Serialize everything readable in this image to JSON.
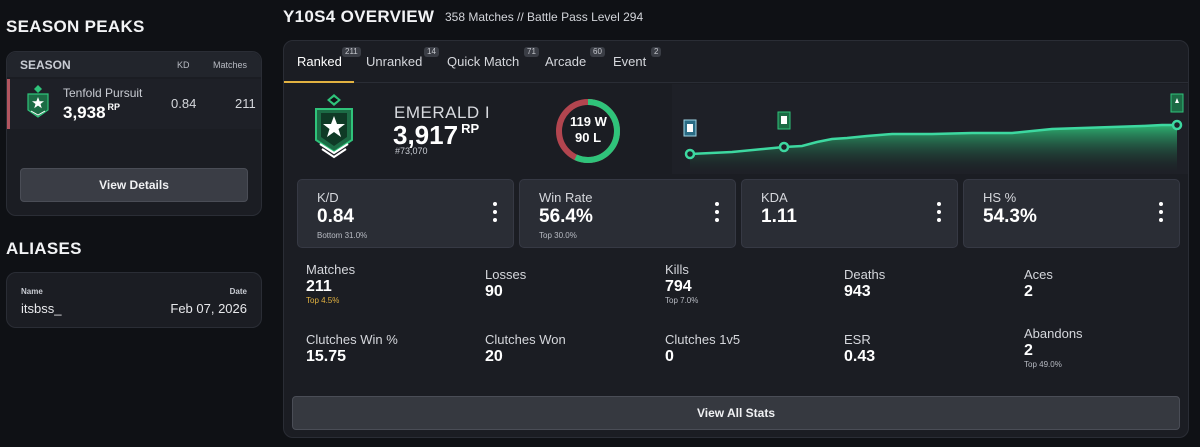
{
  "sidebar": {
    "season_peaks_title": "SEASON PEAKS",
    "table_headers": {
      "season": "SEASON",
      "kd": "KD",
      "matches": "Matches"
    },
    "peak": {
      "name": "Tenfold Pursuit",
      "rp": "3,938",
      "rp_unit": "RP",
      "kd": "0.84",
      "matches": "211"
    },
    "view_details_label": "View Details",
    "aliases_title": "ALIASES",
    "alias_headers": {
      "name": "Name",
      "date": "Date"
    },
    "alias": {
      "name": "itsbss_",
      "date": "Feb 07, 2026"
    }
  },
  "overview": {
    "title": "Y10S4 OVERVIEW",
    "subtitle": "358 Matches //  Battle Pass Level 294"
  },
  "tabs": [
    {
      "label": "Ranked",
      "count": "211",
      "active": true
    },
    {
      "label": "Unranked",
      "count": "14"
    },
    {
      "label": "Quick Match",
      "count": "71"
    },
    {
      "label": "Arcade",
      "count": "60"
    },
    {
      "label": "Event",
      "count": "2"
    }
  ],
  "rank": {
    "name": "EMERALD I",
    "rp": "3,917",
    "rp_unit": "RP",
    "position": "#73,070",
    "wins": "119 W",
    "losses": "90 L",
    "win_fraction": 0.569
  },
  "stat_cards": [
    {
      "label": "K/D",
      "value": "0.84",
      "sub": "Bottom 31.0%"
    },
    {
      "label": "Win Rate",
      "value": "56.4%",
      "sub": "Top 30.0%"
    },
    {
      "label": "KDA",
      "value": "1.11",
      "sub": ""
    },
    {
      "label": "HS %",
      "value": "54.3%",
      "sub": ""
    }
  ],
  "stats": [
    {
      "label": "Matches",
      "value": "211",
      "sub": "Top 4.5%"
    },
    {
      "label": "Losses",
      "value": "90",
      "sub": ""
    },
    {
      "label": "Kills",
      "value": "794",
      "sub": "Top 7.0%"
    },
    {
      "label": "Deaths",
      "value": "943",
      "sub": ""
    },
    {
      "label": "Aces",
      "value": "2",
      "sub": ""
    },
    {
      "label": "Clutches Win %",
      "value": "15.75",
      "sub": ""
    },
    {
      "label": "Clutches Won",
      "value": "20",
      "sub": ""
    },
    {
      "label": "Clutches 1v5",
      "value": "0",
      "sub": ""
    },
    {
      "label": "ESR",
      "value": "0.43",
      "sub": ""
    },
    {
      "label": "Abandons",
      "value": "2",
      "sub": "Top 49.0%"
    }
  ],
  "view_all_label": "View All Stats",
  "colors": {
    "accent": "#e2b241",
    "win": "#2fc37a",
    "loss": "#b2454f",
    "graph_line": "#3dd8a0"
  }
}
